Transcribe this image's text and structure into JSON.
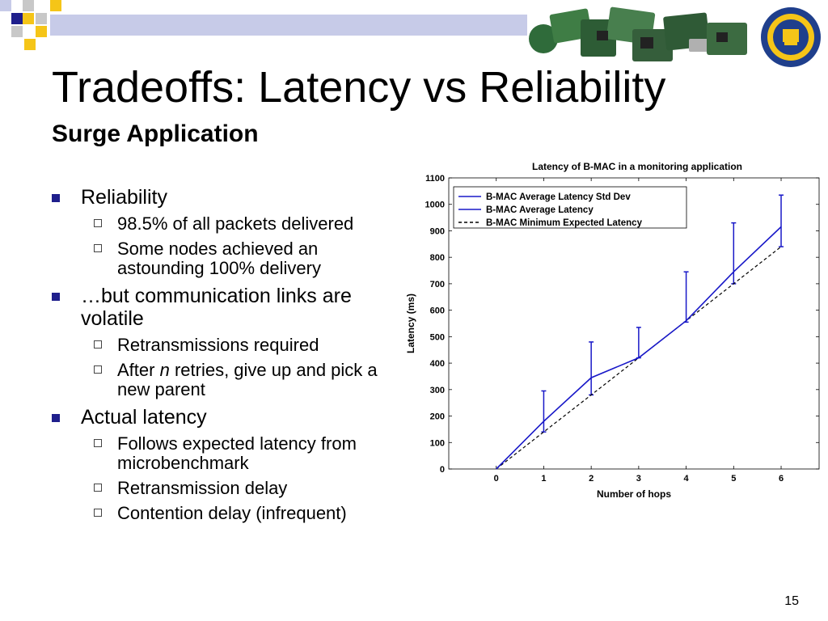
{
  "slide": {
    "title": "Tradeoffs: Latency vs Reliability",
    "subtitle": "Surge Application",
    "page_number": "15",
    "colors": {
      "bullet": "#1f1f8c",
      "deco_navy": "#1f1f8c",
      "deco_yellow": "#f5c518",
      "deco_gray": "#c8c8c8",
      "deco_lightblue": "#c7cbe8"
    },
    "icons": {
      "boards": "sensor-boards-image",
      "seal": "university-seal-logo"
    }
  },
  "bullets": [
    {
      "text": "Reliability",
      "children": [
        {
          "text": "98.5% of all packets delivered"
        },
        {
          "text": "Some nodes achieved an astounding 100% delivery"
        }
      ]
    },
    {
      "text": "…but communication links are volatile",
      "children": [
        {
          "text": "Retransmissions required"
        },
        {
          "pre": "After ",
          "em": "n",
          "post": " retries, give up and pick a new parent"
        }
      ]
    },
    {
      "text": "Actual latency",
      "children": [
        {
          "text": "Follows expected latency from microbenchmark"
        },
        {
          "text": "Retransmission delay"
        },
        {
          "text": "Contention delay (infrequent)"
        }
      ]
    }
  ],
  "chart_data": {
    "type": "line",
    "title": "Latency of B-MAC in a monitoring application",
    "xlabel": "Number of hops",
    "ylabel": "Latency (ms)",
    "x": [
      0,
      1,
      2,
      3,
      4,
      5,
      6
    ],
    "xlim": [
      -1,
      6.8
    ],
    "ylim": [
      0,
      1100
    ],
    "x_ticks": [
      0,
      1,
      2,
      3,
      4,
      5,
      6
    ],
    "y_ticks": [
      0,
      100,
      200,
      300,
      400,
      500,
      600,
      700,
      800,
      900,
      1000,
      1100
    ],
    "legend_position": "top-left",
    "series": [
      {
        "name": "B-MAC Average Latency Std Dev",
        "style": "errorbar",
        "color": "#1818c8",
        "low": [
          0,
          140,
          280,
          420,
          555,
          700,
          840
        ],
        "high": [
          0,
          295,
          480,
          535,
          745,
          930,
          1035
        ]
      },
      {
        "name": "B-MAC Average Latency",
        "style": "solid",
        "color": "#1818c8",
        "values": [
          0,
          180,
          345,
          420,
          560,
          745,
          915
        ]
      },
      {
        "name": "B-MAC Minimum Expected Latency",
        "style": "dashed",
        "color": "#000000",
        "values": [
          0,
          140,
          280,
          420,
          560,
          700,
          840
        ]
      }
    ]
  }
}
